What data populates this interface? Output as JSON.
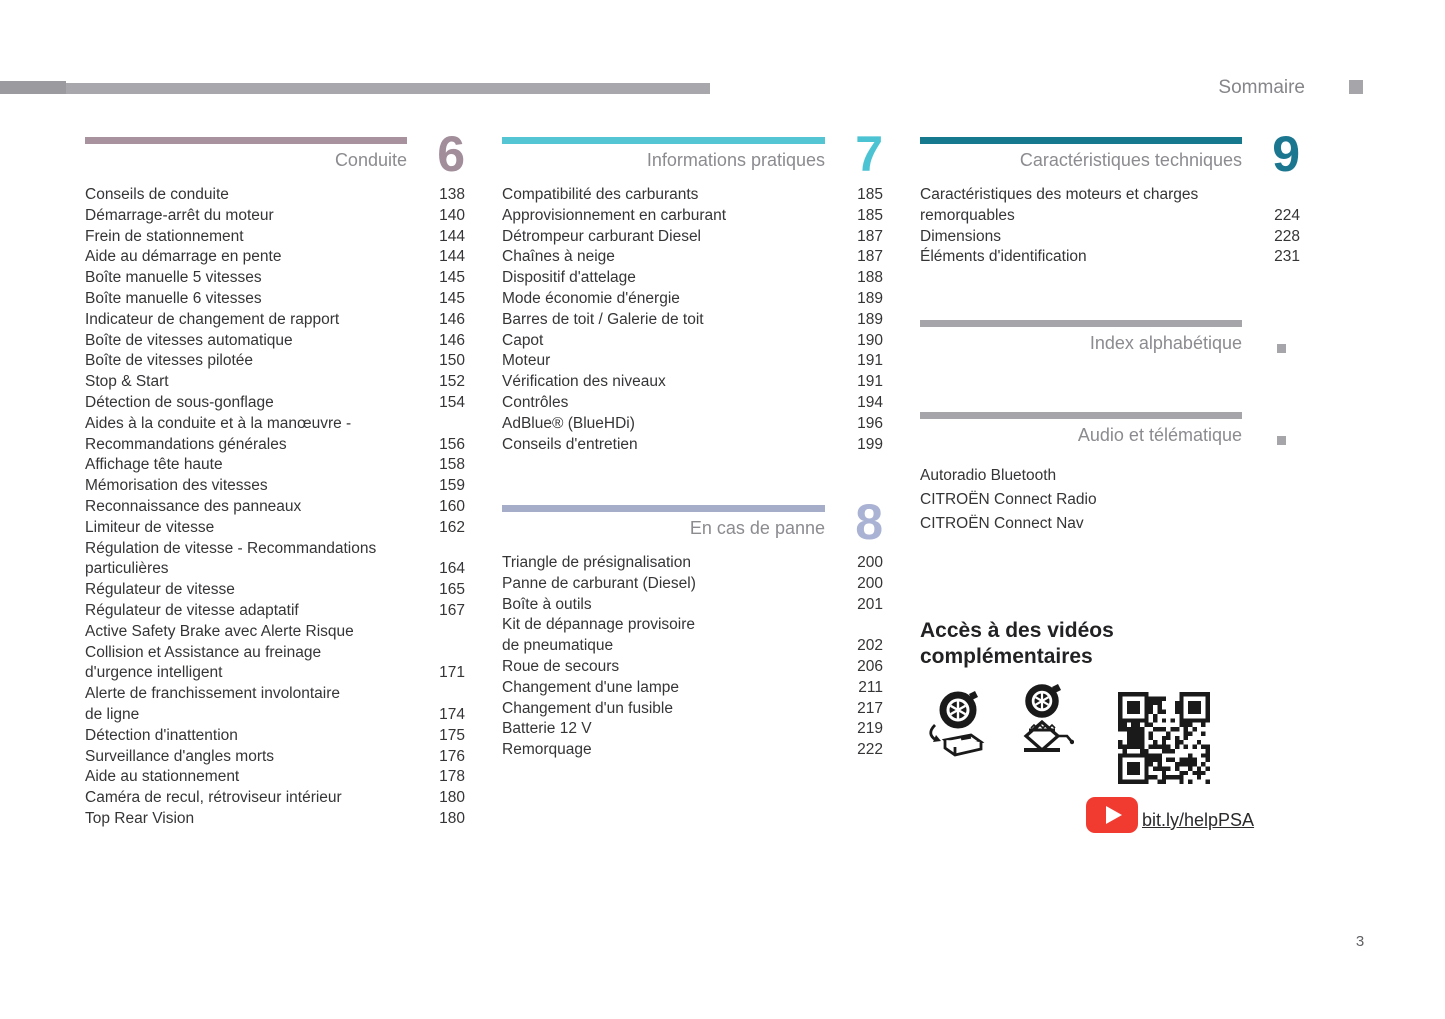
{
  "header": {
    "title": "Sommaire"
  },
  "footer": {
    "page_number": "3"
  },
  "colors": {
    "top_rule": "#a8a8ac",
    "section_conduite": "#a8929e",
    "section_infos": "#54c6d3",
    "section_panne": "#a5adc9",
    "section_carac": "#17798e",
    "gray_rule": "#a6a6aa",
    "youtube_red": "#f23b30"
  },
  "sections": [
    {
      "id": "conduite",
      "title": "Conduite",
      "number": "6",
      "bar_color": "#a8929e",
      "number_color": "#a28d9a",
      "entries": [
        {
          "label": "Conseils de conduite",
          "page": "138"
        },
        {
          "label": "Démarrage-arrêt du moteur",
          "page": "140"
        },
        {
          "label": "Frein de stationnement",
          "page": "144"
        },
        {
          "label": "Aide au démarrage en pente",
          "page": "144"
        },
        {
          "label": "Boîte manuelle 5 vitesses",
          "page": "145"
        },
        {
          "label": "Boîte manuelle 6 vitesses",
          "page": "145"
        },
        {
          "label": "Indicateur de changement de rapport",
          "page": "146"
        },
        {
          "label": "Boîte de vitesses automatique",
          "page": "146"
        },
        {
          "label": "Boîte de vitesses pilotée",
          "page": "150"
        },
        {
          "label": "Stop & Start",
          "page": "152"
        },
        {
          "label": "Détection de sous-gonflage",
          "page": "154"
        },
        {
          "label": "Aides à la conduite et à la manœuvre -\nRecommandations générales",
          "page": "156"
        },
        {
          "label": "Affichage tête haute",
          "page": "158"
        },
        {
          "label": "Mémorisation des vitesses",
          "page": "159"
        },
        {
          "label": "Reconnaissance des panneaux",
          "page": "160"
        },
        {
          "label": "Limiteur de vitesse",
          "page": "162"
        },
        {
          "label": "Régulation de vitesse - Recommandations\nparticulières",
          "page": "164"
        },
        {
          "label": "Régulateur de vitesse",
          "page": "165"
        },
        {
          "label": "Régulateur de vitesse adaptatif",
          "page": "167"
        },
        {
          "label": "Active Safety Brake avec Alerte Risque\nCollision et Assistance au freinage\nd'urgence intelligent",
          "page": "171"
        },
        {
          "label": "Alerte de franchissement involontaire\nde ligne",
          "page": "174"
        },
        {
          "label": "Détection d'inattention",
          "page": "175"
        },
        {
          "label": "Surveillance d'angles morts",
          "page": "176"
        },
        {
          "label": "Aide au stationnement",
          "page": "178"
        },
        {
          "label": "Caméra de recul, rétroviseur intérieur",
          "page": "180"
        },
        {
          "label": "Top Rear Vision",
          "page": "180"
        }
      ]
    },
    {
      "id": "infos",
      "title": "Informations pratiques",
      "number": "7",
      "bar_color": "#54c6d3",
      "number_color": "#4cc3d3",
      "entries": [
        {
          "label": "Compatibilité des carburants",
          "page": "185"
        },
        {
          "label": "Approvisionnement en carburant",
          "page": "185"
        },
        {
          "label": "Détrompeur carburant Diesel",
          "page": "187"
        },
        {
          "label": "Chaînes à neige",
          "page": "187"
        },
        {
          "label": "Dispositif d'attelage",
          "page": "188"
        },
        {
          "label": "Mode économie d'énergie",
          "page": "189"
        },
        {
          "label": "Barres de toit / Galerie de toit",
          "page": "189"
        },
        {
          "label": "Capot",
          "page": "190"
        },
        {
          "label": "Moteur",
          "page": "191"
        },
        {
          "label": "Vérification des niveaux",
          "page": "191"
        },
        {
          "label": "Contrôles",
          "page": "194"
        },
        {
          "label": "AdBlue® (BlueHDi)",
          "page": "196"
        },
        {
          "label": "Conseils d'entretien",
          "page": "199"
        }
      ]
    },
    {
      "id": "panne",
      "title": "En cas de panne",
      "number": "8",
      "bar_color": "#a5adc9",
      "number_color": "#aab3d3",
      "entries": [
        {
          "label": "Triangle de présignalisation",
          "page": "200"
        },
        {
          "label": "Panne de carburant (Diesel)",
          "page": "200"
        },
        {
          "label": "Boîte à outils",
          "page": "201"
        },
        {
          "label": "Kit de dépannage provisoire\nde pneumatique",
          "page": "202"
        },
        {
          "label": "Roue de secours",
          "page": "206"
        },
        {
          "label": "Changement d'une lampe",
          "page": "211"
        },
        {
          "label": "Changement d'un fusible",
          "page": "217"
        },
        {
          "label": "Batterie 12 V",
          "page": "219"
        },
        {
          "label": "Remorquage",
          "page": "222"
        }
      ]
    },
    {
      "id": "carac",
      "title": "Caractéristiques techniques",
      "number": "9",
      "bar_color": "#17798e",
      "number_color": "#1b7690",
      "entries": [
        {
          "label": "Caractéristiques des moteurs et charges\nremorquables",
          "page": "224"
        },
        {
          "label": "Dimensions",
          "page": "228"
        },
        {
          "label": "Éléments d'identification",
          "page": "231"
        }
      ]
    }
  ],
  "index_section": {
    "title": "Index alphabétique"
  },
  "audio_section": {
    "title": "Audio et télématique",
    "entries": [
      {
        "label": "Autoradio Bluetooth",
        "page": ""
      },
      {
        "label": "CITROËN Connect Radio",
        "page": ""
      },
      {
        "label": "CITROËN Connect Nav",
        "page": ""
      }
    ]
  },
  "videos": {
    "title": "Accès à des vidéos\ncomplémentaires",
    "link_label": "bit.ly/helpPSA",
    "icons": [
      "tire-inflation-kit-icon",
      "scissor-jack-icon",
      "qr-code",
      "youtube-icon"
    ]
  }
}
